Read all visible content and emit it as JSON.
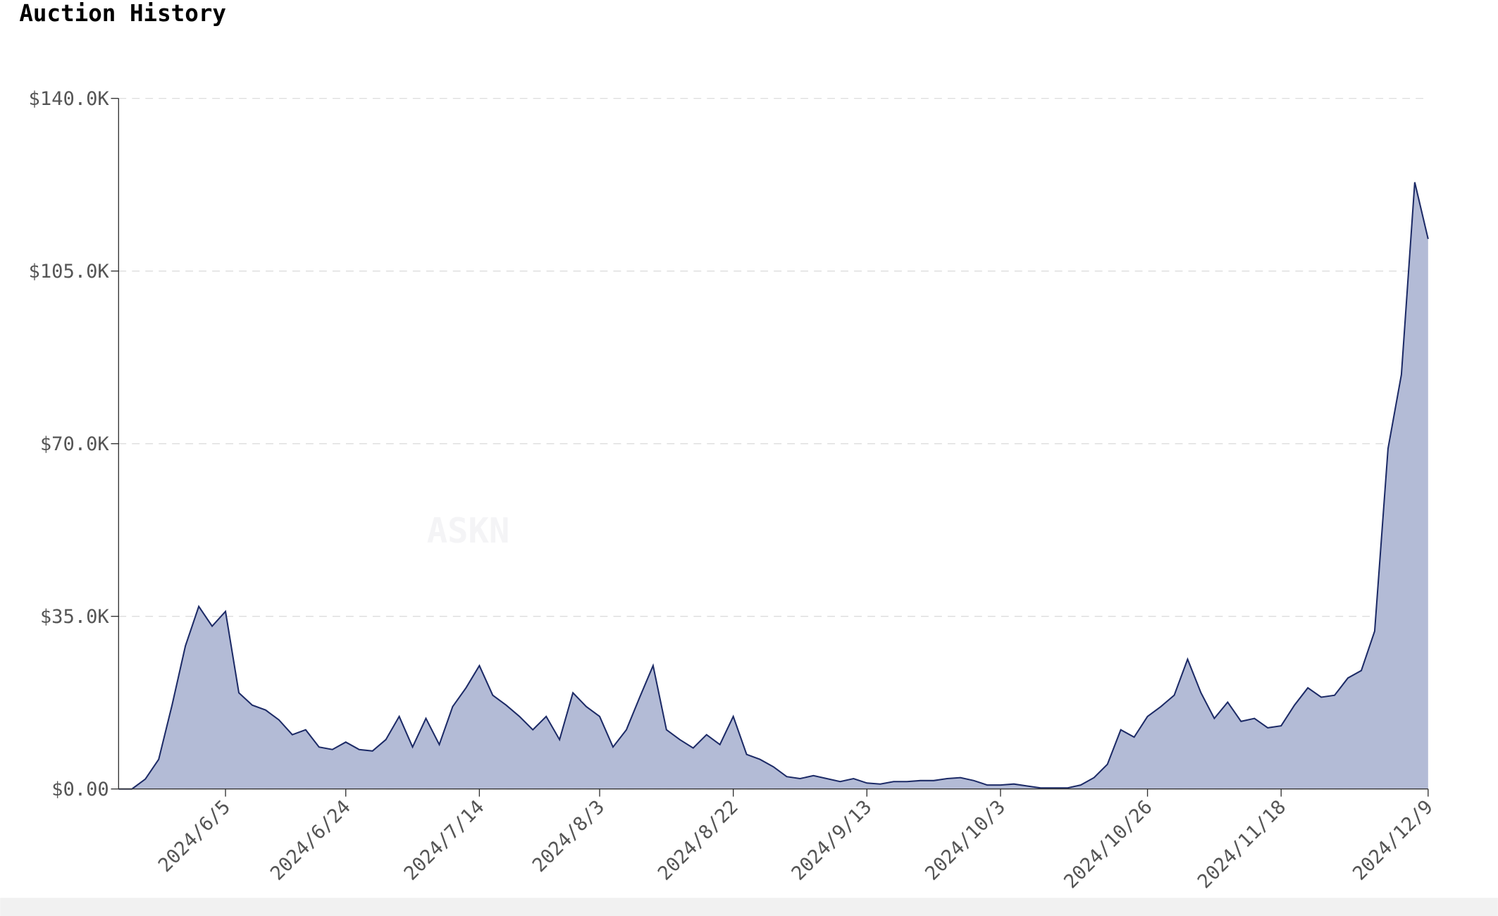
{
  "chart_data": {
    "type": "area",
    "title": "Auction History",
    "watermark": "ASKN",
    "categories": [
      null,
      null,
      null,
      null,
      null,
      null,
      null,
      null,
      "2024/6/5",
      null,
      null,
      null,
      null,
      null,
      null,
      null,
      null,
      "2024/6/24",
      null,
      null,
      null,
      null,
      null,
      null,
      null,
      null,
      null,
      "2024/7/14",
      null,
      null,
      null,
      null,
      null,
      null,
      null,
      null,
      "2024/8/3",
      null,
      null,
      null,
      null,
      null,
      null,
      null,
      null,
      null,
      "2024/8/22",
      null,
      null,
      null,
      null,
      null,
      null,
      null,
      null,
      null,
      "2024/9/13",
      null,
      null,
      null,
      null,
      null,
      null,
      null,
      null,
      null,
      "2024/10/3",
      null,
      null,
      null,
      null,
      null,
      null,
      null,
      null,
      null,
      null,
      "2024/10/26",
      null,
      null,
      null,
      null,
      null,
      null,
      null,
      null,
      null,
      "2024/11/18",
      null,
      null,
      null,
      null,
      null,
      null,
      null,
      null,
      null,
      null,
      "2024/12/9"
    ],
    "values": [
      0,
      0,
      2000,
      6000,
      17000,
      29000,
      37000,
      33000,
      36000,
      19500,
      17000,
      16000,
      14000,
      11000,
      12000,
      8500,
      8000,
      9500,
      8000,
      7700,
      10000,
      14700,
      8500,
      14300,
      9000,
      16700,
      20500,
      25000,
      19000,
      17000,
      14700,
      12000,
      14700,
      10000,
      19500,
      16700,
      14700,
      8500,
      12000,
      18600,
      25000,
      12000,
      10000,
      8300,
      11000,
      9000,
      14700,
      7000,
      6000,
      4500,
      2500,
      2100,
      2700,
      2100,
      1500,
      2100,
      1200,
      1000,
      1500,
      1500,
      1700,
      1700,
      2100,
      2300,
      1700,
      800,
      800,
      1000,
      600,
      200,
      200,
      200,
      800,
      2300,
      5000,
      12000,
      10500,
      14700,
      16700,
      19000,
      26300,
      19500,
      14300,
      17600,
      13700,
      14300,
      12400,
      12800,
      17000,
      20500,
      18600,
      19000,
      22500,
      24000,
      32000,
      69000,
      84000,
      123000,
      111500
    ],
    "color": "#b3bbd6",
    "line_color": "#1c2a66",
    "ylim": [
      0,
      140000
    ],
    "yticks": [
      {
        "value": 0,
        "label": "$0.00"
      },
      {
        "value": 35000,
        "label": "$35.0K"
      },
      {
        "value": 70000,
        "label": "$70.0K"
      },
      {
        "value": 105000,
        "label": "$105.0K"
      },
      {
        "value": 140000,
        "label": "$140.0K"
      }
    ],
    "grid": true
  }
}
